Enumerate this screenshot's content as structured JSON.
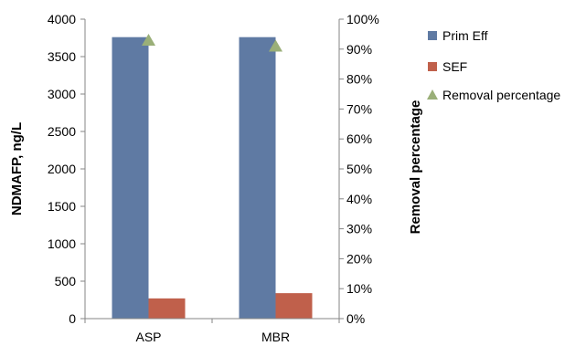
{
  "chart_data": {
    "type": "bar",
    "categories": [
      "ASP",
      "MBR"
    ],
    "series": [
      {
        "name": "Prim Eff",
        "axis": "left",
        "mark": "bar",
        "color": "#5f7aa3",
        "values": [
          3760,
          3760
        ]
      },
      {
        "name": "SEF",
        "axis": "left",
        "mark": "bar",
        "color": "#c0604b",
        "values": [
          270,
          340
        ]
      },
      {
        "name": "Removal percentage",
        "axis": "right",
        "mark": "triangle",
        "color": "#9aaf78",
        "values": [
          93,
          91
        ]
      }
    ],
    "ylabel": "NDMAFP, ng/L",
    "ylim": [
      0,
      4000
    ],
    "yticks": [
      "0",
      "500",
      "1000",
      "1500",
      "2000",
      "2500",
      "3000",
      "3500",
      "4000"
    ],
    "y2label": "Removal percentage",
    "y2lim": [
      0,
      100
    ],
    "y2ticks": [
      "0%",
      "10%",
      "20%",
      "30%",
      "40%",
      "50%",
      "60%",
      "70%",
      "80%",
      "90%",
      "100%"
    ],
    "grid": false,
    "legend_position": "right"
  }
}
